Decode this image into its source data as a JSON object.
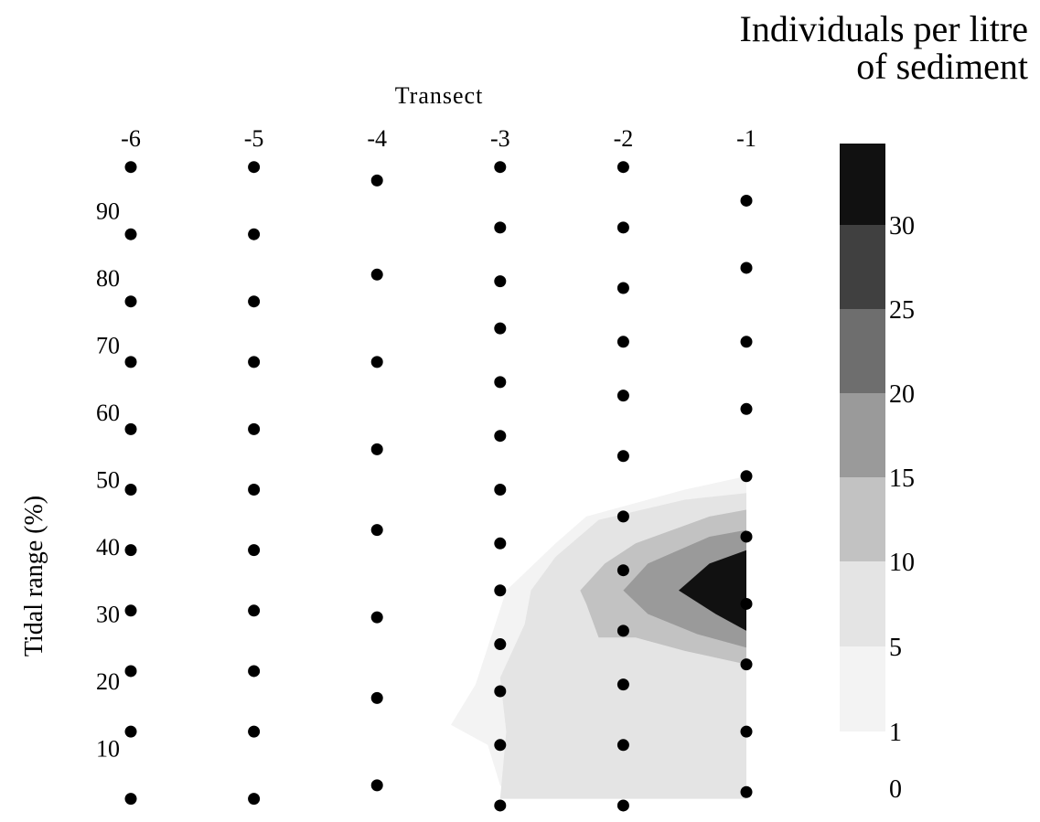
{
  "chart_data": {
    "type": "contour",
    "title_lines": [
      "Individuals per litre",
      "of sediment"
    ],
    "xlabel": "Transect",
    "ylabel": "Tidal range (%)",
    "x_ticks": [
      "-6",
      "-5",
      "-4",
      "-3",
      "-2",
      "-1"
    ],
    "y_ticks": [
      "10",
      "20",
      "30",
      "40",
      "50",
      "60",
      "70",
      "80",
      "90"
    ],
    "colorbar": {
      "levels": [
        0,
        1,
        5,
        10,
        15,
        20,
        25,
        30,
        35
      ],
      "tick_labels": [
        "0",
        "1",
        "5",
        "10",
        "15",
        "20",
        "25",
        "30"
      ],
      "colors": [
        "#ffffff",
        "#f3f3f3",
        "#e4e4e4",
        "#c2c2c2",
        "#9a9a9a",
        "#6e6e6e",
        "#404040",
        "#111111"
      ]
    },
    "sample_points": [
      {
        "transect": -6,
        "tidal_range": [
          4,
          14,
          23,
          32,
          41,
          50,
          59,
          69,
          78,
          88,
          98
        ]
      },
      {
        "transect": -5,
        "tidal_range": [
          4,
          14,
          23,
          32,
          41,
          50,
          59,
          69,
          78,
          88,
          98
        ]
      },
      {
        "transect": -4,
        "tidal_range": [
          6,
          19,
          31,
          44,
          56,
          69,
          82,
          96
        ]
      },
      {
        "transect": -3,
        "tidal_range": [
          3,
          12,
          20,
          27,
          35,
          42,
          50,
          58,
          66,
          74,
          81,
          89,
          98
        ]
      },
      {
        "transect": -2,
        "tidal_range": [
          3,
          12,
          21,
          29,
          38,
          46,
          55,
          64,
          72,
          80,
          89,
          98
        ]
      },
      {
        "transect": -1,
        "tidal_range": [
          5,
          14,
          24,
          33,
          43,
          52,
          62,
          72,
          83,
          93
        ]
      }
    ],
    "contour_regions": [
      {
        "level_min": 1,
        "level_max": 5
      },
      {
        "level_min": 5,
        "level_max": 10
      },
      {
        "level_min": 10,
        "level_max": 15
      },
      {
        "level_min": 15,
        "level_max": 20
      },
      {
        "level_min": 20,
        "level_max": 25
      },
      {
        "level_min": 25,
        "level_max": 30
      },
      {
        "level_min": 30,
        "level_max": 35
      }
    ]
  }
}
